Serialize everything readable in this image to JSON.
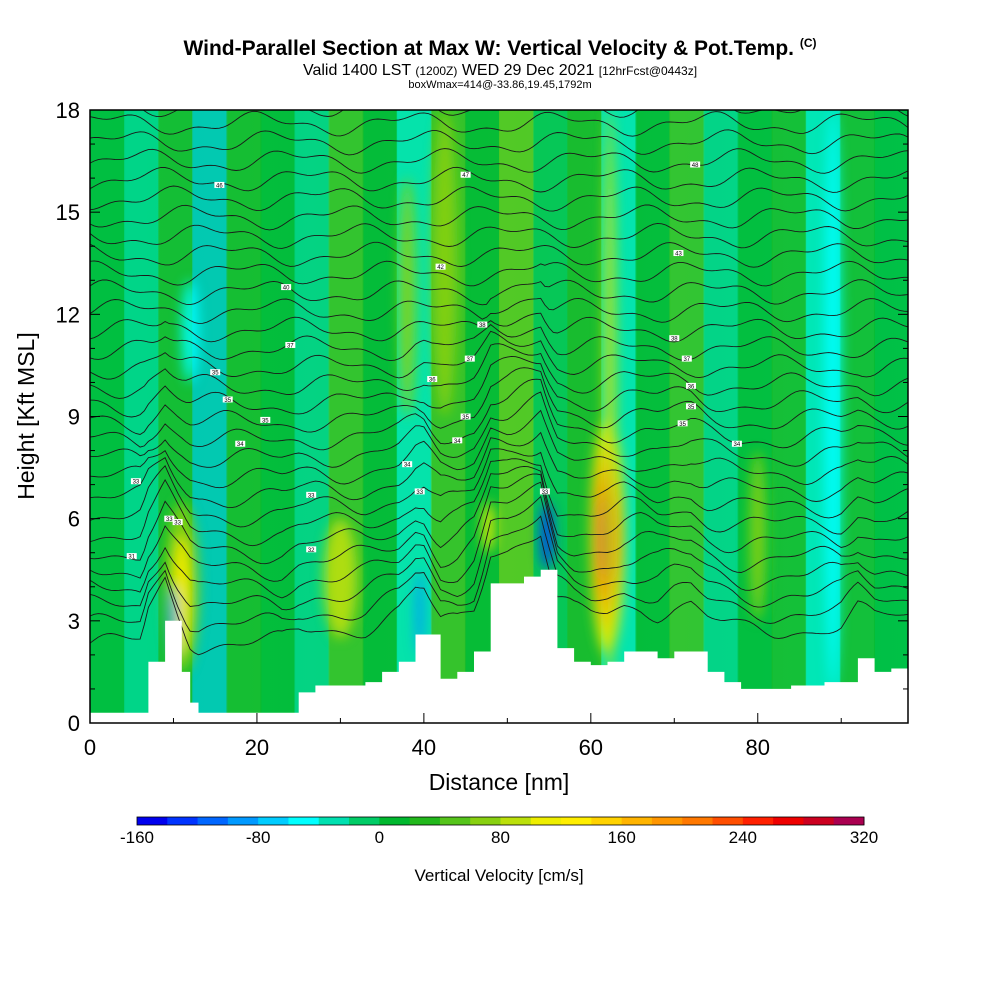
{
  "header": {
    "title": "Wind-Parallel Section at Max W: Vertical Velocity & Pot.Temp.",
    "copyright": "(C)",
    "valid_prefix": "Valid 1400 LST",
    "valid_utc": "(1200Z)",
    "valid_date": "WED 29 Dec 2021",
    "forecast": "[12hrFcst@0443z]",
    "box_info": "boxWmax=414@-33.86,19.45,1792m"
  },
  "chart_data": {
    "type": "heatmap",
    "xlabel": "Distance [nm]",
    "ylabel": "Height [Kft MSL]",
    "xlim": [
      0,
      98
    ],
    "ylim": [
      0,
      18
    ],
    "xticks": [
      0,
      20,
      40,
      60,
      80
    ],
    "yticks": [
      0,
      3,
      6,
      9,
      12,
      15,
      18
    ],
    "colorbar": {
      "label": "Vertical Velocity [cm/s]",
      "range": [
        -160,
        320
      ],
      "tick_values": [
        -160,
        -80,
        0,
        80,
        160,
        240,
        320
      ],
      "tick_labels": [
        "-160",
        "-80",
        "0",
        "80",
        "160",
        "240",
        "320"
      ],
      "colors": [
        "#0000ee",
        "#0033ff",
        "#0066ff",
        "#0099ff",
        "#00ccff",
        "#00ffff",
        "#00e0b0",
        "#00cc66",
        "#00b82e",
        "#22b81c",
        "#55c41a",
        "#88d010",
        "#bbe00a",
        "#eeee00",
        "#ffee00",
        "#ffd200",
        "#ffb400",
        "#ff9600",
        "#ff7800",
        "#ff4e00",
        "#ff2000",
        "#ee0000",
        "#cc0020",
        "#aa0050"
      ]
    },
    "velocity_cells": [
      {
        "x": [
          9,
          13
        ],
        "y": [
          1.5,
          6.5
        ],
        "w": 70
      },
      {
        "x": [
          10,
          12
        ],
        "y": [
          2,
          5.5
        ],
        "w": 120
      },
      {
        "x": [
          28,
          32
        ],
        "y": [
          2.5,
          6
        ],
        "w": 90
      },
      {
        "x": [
          37,
          39
        ],
        "y": [
          9,
          16
        ],
        "w": 70
      },
      {
        "x": [
          41,
          44
        ],
        "y": [
          9,
          18
        ],
        "w": 60
      },
      {
        "x": [
          47,
          48.5
        ],
        "y": [
          5,
          6.5
        ],
        "w": 100
      },
      {
        "x": [
          60,
          64
        ],
        "y": [
          2,
          9
        ],
        "w": 300
      },
      {
        "x": [
          61.5,
          63
        ],
        "y": [
          1,
          18
        ],
        "w": 80
      },
      {
        "x": [
          79,
          81
        ],
        "y": [
          3,
          8
        ],
        "w": 60
      },
      {
        "x": [
          9.5,
          10.5
        ],
        "y": [
          2,
          4
        ],
        "w": -90
      },
      {
        "x": [
          39,
          40
        ],
        "y": [
          2,
          4.5
        ],
        "w": -100
      },
      {
        "x": [
          54,
          55.5
        ],
        "y": [
          4.5,
          6.5
        ],
        "w": -130
      },
      {
        "x": [
          11,
          13
        ],
        "y": [
          10,
          13
        ],
        "w": -60
      },
      {
        "x": [
          88,
          90
        ],
        "y": [
          1,
          18
        ],
        "w": -50
      }
    ],
    "terrain_profile": {
      "x": [
        0,
        6,
        7,
        9,
        11,
        12,
        13,
        15,
        17,
        20,
        23,
        25,
        27,
        30,
        33,
        35,
        37,
        39,
        40,
        42,
        44,
        46,
        48,
        50,
        52,
        54,
        56,
        58,
        60,
        62,
        64,
        66,
        68,
        70,
        72,
        74,
        76,
        78,
        80,
        82,
        84,
        86,
        88,
        90,
        92,
        94,
        96,
        98
      ],
      "y": [
        0.3,
        0.3,
        1.8,
        3.0,
        1.5,
        0.6,
        0.3,
        0.3,
        0.3,
        0.3,
        0.3,
        0.9,
        1.1,
        1.1,
        1.2,
        1.5,
        1.8,
        2.6,
        2.6,
        1.3,
        1.5,
        2.1,
        4.1,
        4.1,
        4.3,
        4.5,
        2.2,
        1.8,
        1.7,
        1.8,
        2.1,
        2.1,
        1.9,
        2.1,
        2.1,
        1.5,
        1.2,
        1.0,
        1.0,
        1.0,
        1.1,
        1.1,
        1.2,
        1.2,
        1.9,
        1.5,
        1.6,
        1.6
      ]
    },
    "isentrope_labels": [
      {
        "x": 5,
        "y": 4.9,
        "text": "31"
      },
      {
        "x": 5.5,
        "y": 7.1,
        "text": "33"
      },
      {
        "x": 9.5,
        "y": 6.0,
        "text": "33"
      },
      {
        "x": 10.5,
        "y": 5.9,
        "text": "33"
      },
      {
        "x": 15,
        "y": 10.3,
        "text": "35"
      },
      {
        "x": 16.5,
        "y": 9.5,
        "text": "35"
      },
      {
        "x": 18,
        "y": 8.2,
        "text": "34"
      },
      {
        "x": 15.5,
        "y": 15.8,
        "text": "46"
      },
      {
        "x": 21,
        "y": 8.9,
        "text": "35"
      },
      {
        "x": 23.5,
        "y": 12.8,
        "text": "40"
      },
      {
        "x": 24,
        "y": 11.1,
        "text": "37"
      },
      {
        "x": 26.5,
        "y": 6.7,
        "text": "33"
      },
      {
        "x": 26.5,
        "y": 5.1,
        "text": "32"
      },
      {
        "x": 38,
        "y": 7.6,
        "text": "34"
      },
      {
        "x": 39.5,
        "y": 6.8,
        "text": "33"
      },
      {
        "x": 41,
        "y": 10.1,
        "text": "36"
      },
      {
        "x": 42,
        "y": 13.4,
        "text": "42"
      },
      {
        "x": 44,
        "y": 8.3,
        "text": "34"
      },
      {
        "x": 45.5,
        "y": 10.7,
        "text": "37"
      },
      {
        "x": 45,
        "y": 9.0,
        "text": "35"
      },
      {
        "x": 45,
        "y": 16.1,
        "text": "47"
      },
      {
        "x": 47,
        "y": 11.7,
        "text": "38"
      },
      {
        "x": 54.5,
        "y": 6.8,
        "text": "33"
      },
      {
        "x": 70,
        "y": 11.3,
        "text": "38"
      },
      {
        "x": 70.5,
        "y": 13.8,
        "text": "43"
      },
      {
        "x": 72.5,
        "y": 16.4,
        "text": "48"
      },
      {
        "x": 71.5,
        "y": 10.7,
        "text": "37"
      },
      {
        "x": 72,
        "y": 9.9,
        "text": "36"
      },
      {
        "x": 72,
        "y": 9.3,
        "text": "35"
      },
      {
        "x": 71,
        "y": 8.8,
        "text": "35"
      },
      {
        "x": 77.5,
        "y": 8.2,
        "text": "34"
      }
    ]
  }
}
